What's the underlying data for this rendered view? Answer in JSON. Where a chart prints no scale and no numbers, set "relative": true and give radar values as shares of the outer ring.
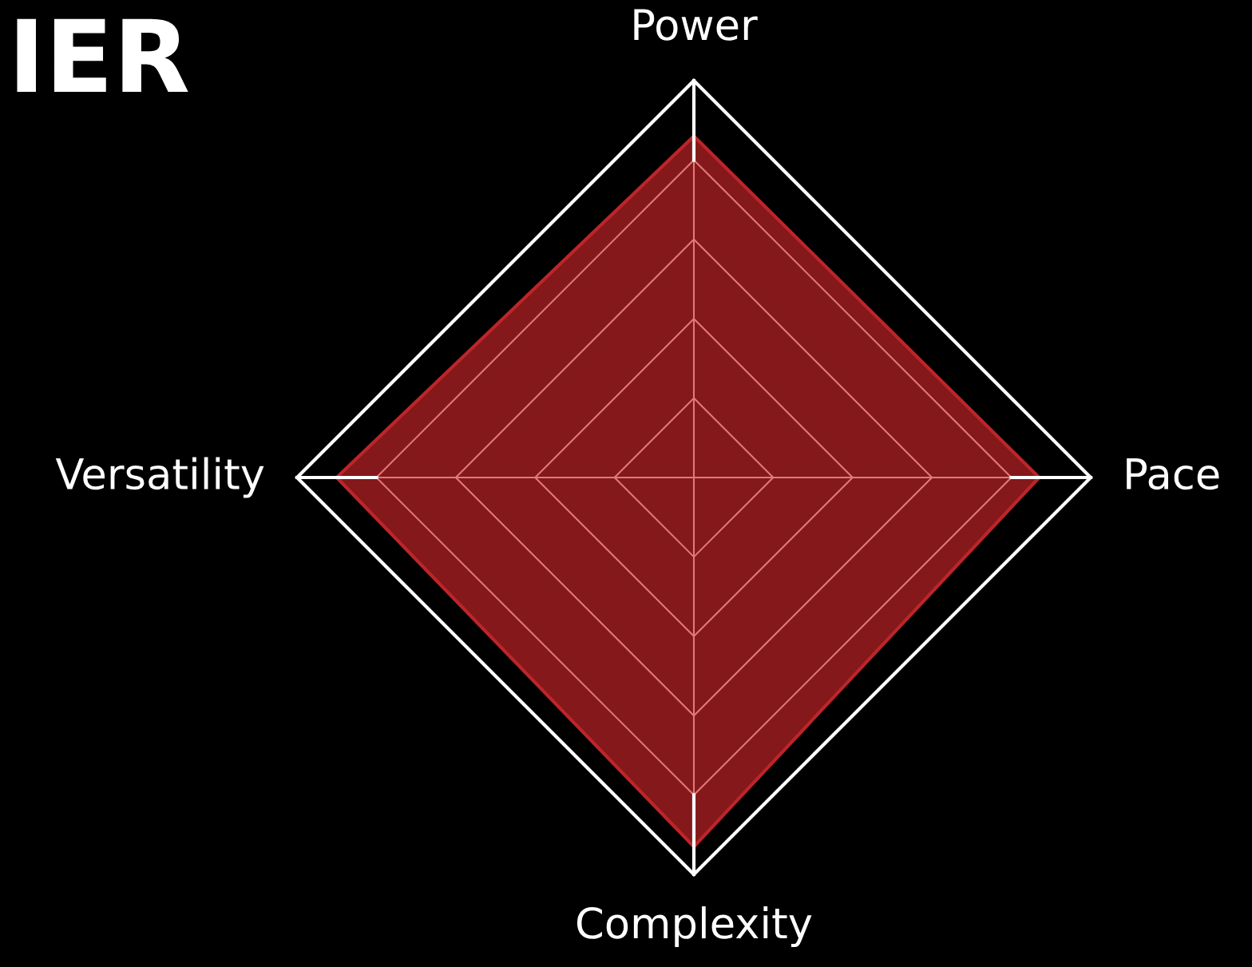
{
  "chart_data": {
    "type": "radar",
    "title": "IER",
    "relative": true,
    "grid": true,
    "categories": [
      "Power",
      "Pace",
      "Complexity",
      "Versatility"
    ],
    "series": [
      {
        "color": "#8c1a1c",
        "values": [
          0.86,
          0.87,
          0.93,
          0.9
        ]
      }
    ]
  }
}
